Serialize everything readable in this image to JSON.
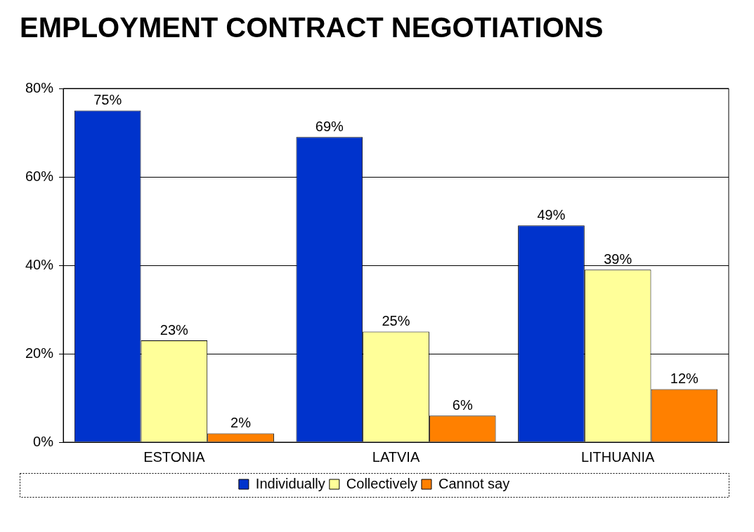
{
  "chart_data": {
    "type": "bar",
    "title": "EMPLOYMENT CONTRACT NEGOTIATIONS",
    "categories": [
      "ESTONIA",
      "LATVIA",
      "LITHUANIA"
    ],
    "series": [
      {
        "name": "Individually",
        "color": "#0033cc",
        "values": [
          75,
          69,
          49
        ],
        "value_labels": [
          "75%",
          "69%",
          "49%"
        ]
      },
      {
        "name": "Collectively",
        "color": "#ffff99",
        "values": [
          23,
          25,
          39
        ],
        "value_labels": [
          "23%",
          "25%",
          "39%"
        ]
      },
      {
        "name": "Cannot say",
        "color": "#ff8000",
        "values": [
          2,
          6,
          12
        ],
        "value_labels": [
          "2%",
          "6%",
          "12%"
        ]
      }
    ],
    "ylim": [
      0,
      80
    ],
    "yticks": [
      {
        "value": 0,
        "label": "0%"
      },
      {
        "value": 20,
        "label": "20%"
      },
      {
        "value": 40,
        "label": "40%"
      },
      {
        "value": 60,
        "label": "60%"
      },
      {
        "value": 80,
        "label": "80%"
      }
    ],
    "grid": "y",
    "legend": "bottom"
  }
}
